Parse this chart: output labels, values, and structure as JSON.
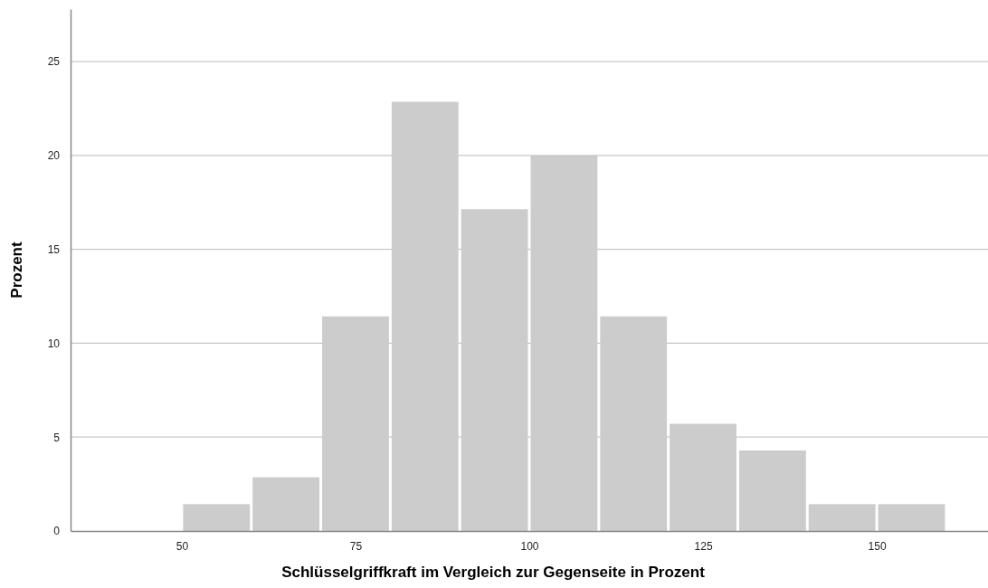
{
  "chart_data": {
    "type": "histogram",
    "xlabel": "Schlüsselgriffkraft im Vergleich zur Gegenseite in Prozent",
    "ylabel": "Prozent",
    "bins": [
      50,
      60,
      70,
      80,
      90,
      100,
      110,
      120,
      130,
      140,
      150,
      160
    ],
    "values": [
      1.43,
      2.86,
      11.43,
      22.86,
      17.14,
      20,
      11.43,
      5.71,
      4.29,
      1.43,
      1.43
    ],
    "color": "#cccccc",
    "xlim": [
      34,
      166
    ],
    "xticks": [
      50,
      75,
      100,
      125,
      150
    ],
    "ylim": [
      0,
      27.8
    ],
    "yticks": [
      0,
      5,
      10,
      15,
      20,
      25
    ],
    "grid": "y"
  }
}
